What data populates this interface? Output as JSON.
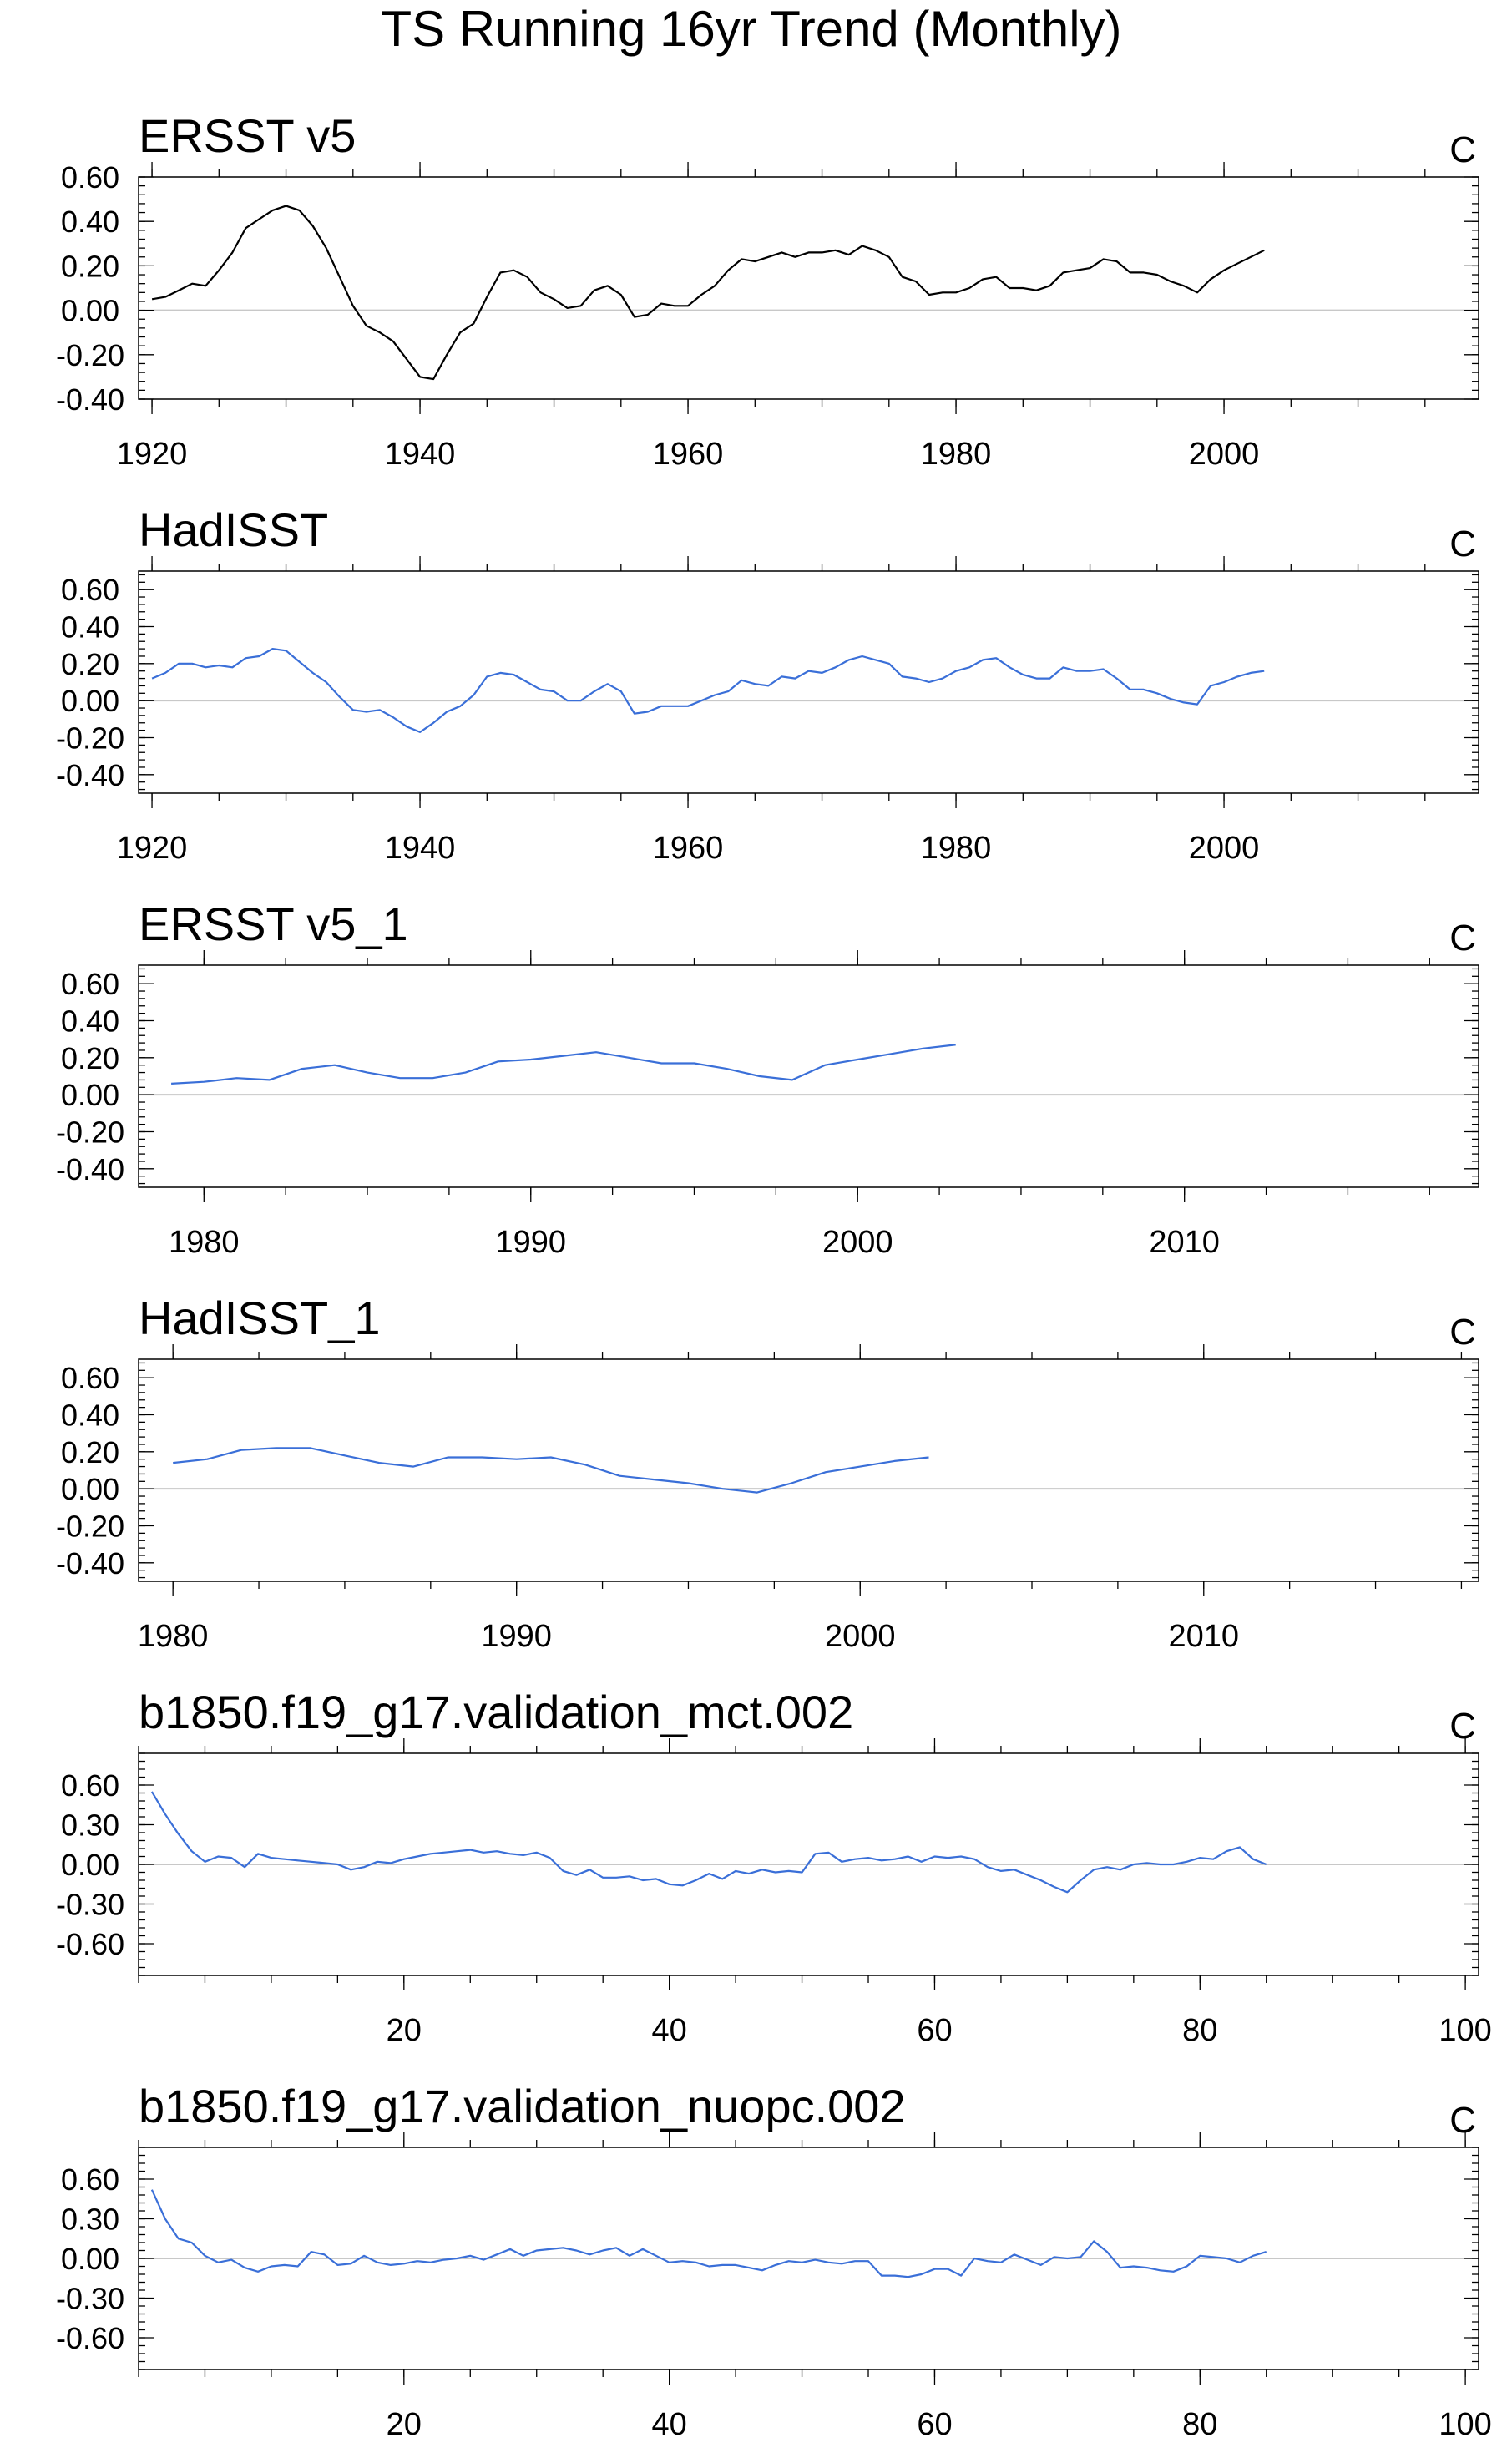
{
  "figure_title": "TS Running 16yr Trend (Monthly)",
  "chart_data": [
    {
      "type": "line",
      "title": "ERSST v5",
      "units": "C",
      "color": "#000000",
      "xlim": [
        1919,
        2019
      ],
      "xticks": [
        1920,
        1940,
        1960,
        1980,
        2000
      ],
      "ylim": [
        -0.4,
        0.6
      ],
      "yticks": [
        "0.60",
        "0.40",
        "0.20",
        "0.00",
        "-0.20",
        "-0.40"
      ],
      "x": [
        1920,
        1921,
        1922,
        1923,
        1924,
        1925,
        1926,
        1927,
        1928,
        1929,
        1930,
        1931,
        1932,
        1933,
        1934,
        1935,
        1936,
        1937,
        1938,
        1939,
        1940,
        1941,
        1942,
        1943,
        1944,
        1945,
        1946,
        1947,
        1948,
        1949,
        1950,
        1951,
        1952,
        1953,
        1954,
        1955,
        1956,
        1957,
        1958,
        1959,
        1960,
        1961,
        1962,
        1963,
        1964,
        1965,
        1966,
        1967,
        1968,
        1969,
        1970,
        1971,
        1972,
        1973,
        1974,
        1975,
        1976,
        1977,
        1978,
        1979,
        1980,
        1981,
        1982,
        1983,
        1984,
        1985,
        1986,
        1987,
        1988,
        1989,
        1990,
        1991,
        1992,
        1993,
        1994,
        1995,
        1996,
        1997,
        1998,
        1999,
        2000,
        2001,
        2002,
        2003
      ],
      "series": [
        {
          "values": [
            0.05,
            0.06,
            0.09,
            0.12,
            0.11,
            0.18,
            0.26,
            0.37,
            0.41,
            0.45,
            0.47,
            0.45,
            0.38,
            0.28,
            0.15,
            0.02,
            -0.07,
            -0.1,
            -0.14,
            -0.22,
            -0.3,
            -0.31,
            -0.2,
            -0.1,
            -0.06,
            0.06,
            0.17,
            0.18,
            0.15,
            0.08,
            0.05,
            0.01,
            0.02,
            0.09,
            0.11,
            0.07,
            -0.03,
            -0.02,
            0.03,
            0.02,
            0.02,
            0.07,
            0.11,
            0.18,
            0.23,
            0.22,
            0.24,
            0.26,
            0.24,
            0.26,
            0.26,
            0.27,
            0.25,
            0.29,
            0.27,
            0.24,
            0.15,
            0.13,
            0.07,
            0.08,
            0.08,
            0.1,
            0.14,
            0.15,
            0.1,
            0.1,
            0.09,
            0.11,
            0.17,
            0.18,
            0.19,
            0.23,
            0.22,
            0.17,
            0.17,
            0.16,
            0.13,
            0.11,
            0.08,
            0.14,
            0.18,
            0.21,
            0.24,
            0.27
          ]
        }
      ]
    },
    {
      "type": "line",
      "title": "HadISST",
      "units": "C",
      "color": "#3a6fd8",
      "xlim": [
        1919,
        2019
      ],
      "xticks": [
        1920,
        1940,
        1960,
        1980,
        2000
      ],
      "ylim": [
        -0.5,
        0.7
      ],
      "yticks": [
        "0.60",
        "0.40",
        "0.20",
        "0.00",
        "-0.20",
        "-0.40"
      ],
      "x": [
        1920,
        1921,
        1922,
        1923,
        1924,
        1925,
        1926,
        1927,
        1928,
        1929,
        1930,
        1931,
        1932,
        1933,
        1934,
        1935,
        1936,
        1937,
        1938,
        1939,
        1940,
        1941,
        1942,
        1943,
        1944,
        1945,
        1946,
        1947,
        1948,
        1949,
        1950,
        1951,
        1952,
        1953,
        1954,
        1955,
        1956,
        1957,
        1958,
        1959,
        1960,
        1961,
        1962,
        1963,
        1964,
        1965,
        1966,
        1967,
        1968,
        1969,
        1970,
        1971,
        1972,
        1973,
        1974,
        1975,
        1976,
        1977,
        1978,
        1979,
        1980,
        1981,
        1982,
        1983,
        1984,
        1985,
        1986,
        1987,
        1988,
        1989,
        1990,
        1991,
        1992,
        1993,
        1994,
        1995,
        1996,
        1997,
        1998,
        1999,
        2000,
        2001,
        2002,
        2003
      ],
      "series": [
        {
          "values": [
            0.12,
            0.15,
            0.2,
            0.2,
            0.18,
            0.19,
            0.18,
            0.23,
            0.24,
            0.28,
            0.27,
            0.21,
            0.15,
            0.1,
            0.02,
            -0.05,
            -0.06,
            -0.05,
            -0.09,
            -0.14,
            -0.17,
            -0.12,
            -0.06,
            -0.03,
            0.03,
            0.13,
            0.15,
            0.14,
            0.1,
            0.06,
            0.05,
            0.0,
            0.0,
            0.05,
            0.09,
            0.05,
            -0.07,
            -0.06,
            -0.03,
            -0.03,
            -0.03,
            0.0,
            0.03,
            0.05,
            0.11,
            0.09,
            0.08,
            0.13,
            0.12,
            0.16,
            0.15,
            0.18,
            0.22,
            0.24,
            0.22,
            0.2,
            0.13,
            0.12,
            0.1,
            0.12,
            0.16,
            0.18,
            0.22,
            0.23,
            0.18,
            0.14,
            0.12,
            0.12,
            0.18,
            0.16,
            0.16,
            0.17,
            0.12,
            0.06,
            0.06,
            0.04,
            0.01,
            -0.01,
            -0.02,
            0.08,
            0.1,
            0.13,
            0.15,
            0.16
          ]
        }
      ]
    },
    {
      "type": "line",
      "title": "ERSST v5_1",
      "units": "C",
      "color": "#3a6fd8",
      "xlim": [
        1978,
        2019
      ],
      "xticks": [
        1980,
        1990,
        2000,
        2010
      ],
      "ylim": [
        -0.5,
        0.7
      ],
      "yticks": [
        "0.60",
        "0.40",
        "0.20",
        "0.00",
        "-0.20",
        "-0.40"
      ],
      "x": [
        1979,
        1980,
        1981,
        1982,
        1983,
        1984,
        1985,
        1986,
        1987,
        1988,
        1989,
        1990,
        1991,
        1992,
        1993,
        1994,
        1995,
        1996,
        1997,
        1998,
        1999,
        2000,
        2001,
        2002,
        2003
      ],
      "series": [
        {
          "values": [
            0.06,
            0.07,
            0.09,
            0.08,
            0.14,
            0.16,
            0.12,
            0.09,
            0.09,
            0.12,
            0.18,
            0.19,
            0.21,
            0.23,
            0.2,
            0.17,
            0.17,
            0.14,
            0.1,
            0.08,
            0.16,
            0.19,
            0.22,
            0.25,
            0.27
          ]
        }
      ]
    },
    {
      "type": "line",
      "title": "HadISST_1",
      "units": "C",
      "color": "#3a6fd8",
      "xlim": [
        1979,
        2018
      ],
      "xticks": [
        1980,
        1990,
        2000,
        2010
      ],
      "ylim": [
        -0.5,
        0.7
      ],
      "yticks": [
        "0.60",
        "0.40",
        "0.20",
        "0.00",
        "-0.20",
        "-0.40"
      ],
      "x": [
        1980,
        1981,
        1982,
        1983,
        1984,
        1985,
        1986,
        1987,
        1988,
        1989,
        1990,
        1991,
        1992,
        1993,
        1994,
        1995,
        1996,
        1997,
        1998,
        1999,
        2000,
        2001,
        2002
      ],
      "series": [
        {
          "values": [
            0.14,
            0.16,
            0.21,
            0.22,
            0.22,
            0.18,
            0.14,
            0.12,
            0.17,
            0.17,
            0.16,
            0.17,
            0.13,
            0.07,
            0.05,
            0.03,
            0.0,
            -0.02,
            0.03,
            0.09,
            0.12,
            0.15,
            0.17
          ]
        }
      ]
    },
    {
      "type": "line",
      "title": "b1850.f19_g17.validation_mct.002",
      "units": "C",
      "color": "#3a6fd8",
      "xlim": [
        0,
        101
      ],
      "xticks": [
        20,
        40,
        60,
        80,
        100
      ],
      "ylim": [
        -0.84,
        0.84
      ],
      "yticks": [
        "0.60",
        "0.30",
        "0.00",
        "-0.30",
        "-0.60"
      ],
      "x": [
        1,
        2,
        3,
        4,
        5,
        6,
        7,
        8,
        9,
        10,
        11,
        12,
        13,
        14,
        15,
        16,
        17,
        18,
        19,
        20,
        21,
        22,
        23,
        24,
        25,
        26,
        27,
        28,
        29,
        30,
        31,
        32,
        33,
        34,
        35,
        36,
        37,
        38,
        39,
        40,
        41,
        42,
        43,
        44,
        45,
        46,
        47,
        48,
        49,
        50,
        51,
        52,
        53,
        54,
        55,
        56,
        57,
        58,
        59,
        60,
        61,
        62,
        63,
        64,
        65,
        66,
        67,
        68,
        69,
        70,
        71,
        72,
        73,
        74,
        75,
        76,
        77,
        78,
        79,
        80,
        81,
        82,
        83,
        84,
        85
      ],
      "series": [
        {
          "values": [
            0.55,
            0.38,
            0.23,
            0.1,
            0.02,
            0.06,
            0.05,
            -0.02,
            0.08,
            0.05,
            0.04,
            0.03,
            0.02,
            0.01,
            0.0,
            -0.04,
            -0.02,
            0.02,
            0.01,
            0.04,
            0.06,
            0.08,
            0.09,
            0.1,
            0.11,
            0.09,
            0.1,
            0.08,
            0.07,
            0.09,
            0.05,
            -0.05,
            -0.08,
            -0.04,
            -0.1,
            -0.1,
            -0.09,
            -0.12,
            -0.11,
            -0.15,
            -0.16,
            -0.12,
            -0.07,
            -0.11,
            -0.05,
            -0.07,
            -0.04,
            -0.06,
            -0.05,
            -0.06,
            0.08,
            0.09,
            0.02,
            0.04,
            0.05,
            0.03,
            0.04,
            0.06,
            0.02,
            0.06,
            0.05,
            0.06,
            0.04,
            -0.02,
            -0.05,
            -0.04,
            -0.08,
            -0.12,
            -0.17,
            -0.21,
            -0.12,
            -0.04,
            -0.02,
            -0.04,
            0.0,
            0.01,
            0.0,
            0.0,
            0.02,
            0.05,
            0.04,
            0.1,
            0.13,
            0.04,
            0.0
          ]
        }
      ]
    },
    {
      "type": "line",
      "title": "b1850.f19_g17.validation_nuopc.002",
      "units": "C",
      "color": "#3a6fd8",
      "xlim": [
        0,
        101
      ],
      "xticks": [
        20,
        40,
        60,
        80,
        100
      ],
      "ylim": [
        -0.84,
        0.84
      ],
      "yticks": [
        "0.60",
        "0.30",
        "0.00",
        "-0.30",
        "-0.60"
      ],
      "x": [
        1,
        2,
        3,
        4,
        5,
        6,
        7,
        8,
        9,
        10,
        11,
        12,
        13,
        14,
        15,
        16,
        17,
        18,
        19,
        20,
        21,
        22,
        23,
        24,
        25,
        26,
        27,
        28,
        29,
        30,
        31,
        32,
        33,
        34,
        35,
        36,
        37,
        38,
        39,
        40,
        41,
        42,
        43,
        44,
        45,
        46,
        47,
        48,
        49,
        50,
        51,
        52,
        53,
        54,
        55,
        56,
        57,
        58,
        59,
        60,
        61,
        62,
        63,
        64,
        65,
        66,
        67,
        68,
        69,
        70,
        71,
        72,
        73,
        74,
        75,
        76,
        77,
        78,
        79,
        80,
        81,
        82,
        83,
        84,
        85
      ],
      "series": [
        {
          "values": [
            0.52,
            0.3,
            0.15,
            0.12,
            0.02,
            -0.03,
            -0.01,
            -0.07,
            -0.1,
            -0.06,
            -0.05,
            -0.06,
            0.05,
            0.03,
            -0.05,
            -0.04,
            0.02,
            -0.03,
            -0.05,
            -0.04,
            -0.02,
            -0.03,
            -0.01,
            0.0,
            0.02,
            -0.01,
            0.03,
            0.07,
            0.02,
            0.06,
            0.07,
            0.08,
            0.06,
            0.03,
            0.06,
            0.08,
            0.02,
            0.07,
            0.02,
            -0.03,
            -0.02,
            -0.03,
            -0.06,
            -0.05,
            -0.05,
            -0.07,
            -0.09,
            -0.05,
            -0.02,
            -0.03,
            -0.01,
            -0.03,
            -0.04,
            -0.02,
            -0.02,
            -0.13,
            -0.13,
            -0.14,
            -0.12,
            -0.08,
            -0.08,
            -0.13,
            0.0,
            -0.02,
            -0.03,
            0.03,
            -0.01,
            -0.05,
            0.01,
            0.0,
            0.01,
            0.13,
            0.05,
            -0.07,
            -0.06,
            -0.07,
            -0.09,
            -0.1,
            -0.06,
            0.02,
            0.01,
            0.0,
            -0.03,
            0.02,
            0.05
          ]
        }
      ]
    }
  ]
}
